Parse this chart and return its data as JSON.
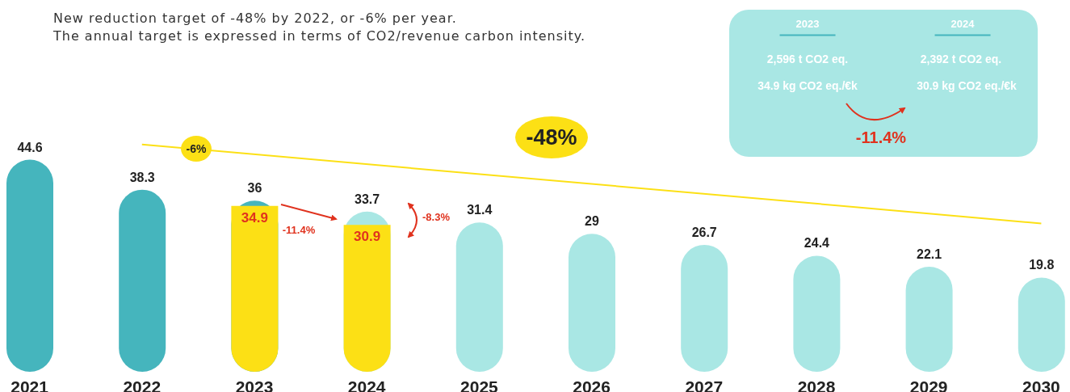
{
  "chart_data": {
    "type": "bar",
    "title": "New reduction target of -48% by 2022, or -6% per year.",
    "subtitle": "The annual target is expressed in terms of CO2/revenue carbon intensity.",
    "categories": [
      "2021",
      "2022",
      "2023",
      "2024",
      "2025",
      "2026",
      "2027",
      "2028",
      "2029",
      "2030"
    ],
    "series": [
      {
        "colors": [
          "#45b5bd",
          "#45b5bd",
          "#45b5bd",
          "#a9e7e4",
          "#a9e7e4",
          "#a9e7e4",
          "#a9e7e4",
          "#a9e7e4",
          "#a9e7e4",
          "#a9e7e4"
        ],
        "values": [
          44.6,
          38.3,
          36,
          33.7,
          31.4,
          29,
          26.7,
          24.4,
          22.1,
          19.8
        ],
        "value_labels": [
          "44.6",
          "38.3",
          "36",
          "33.7",
          "31.4",
          "29",
          "26.7",
          "24.4",
          "22.1",
          "19.8"
        ]
      },
      {
        "color": "#fce015",
        "values": [
          null,
          null,
          34.9,
          30.9,
          null,
          null,
          null,
          null,
          null,
          null
        ],
        "value_labels": [
          null,
          null,
          "34.9",
          "30.9",
          null,
          null,
          null,
          null,
          null,
          null
        ]
      },
      {
        "type": "line",
        "color": "#fce015",
        "values": [
          null,
          47.8,
          null,
          null,
          null,
          null,
          null,
          null,
          null,
          31.2
        ]
      }
    ],
    "annotations": [
      "-6%",
      "-48%",
      "-11.4%",
      "-8.3%",
      "2023",
      "2024",
      "2,596 t CO2 eq.",
      "2,392 t CO2 eq.",
      "34.9 kg CO2 eq./€k",
      "30.9 kg CO2 eq./€k",
      "-11.4%"
    ]
  }
}
